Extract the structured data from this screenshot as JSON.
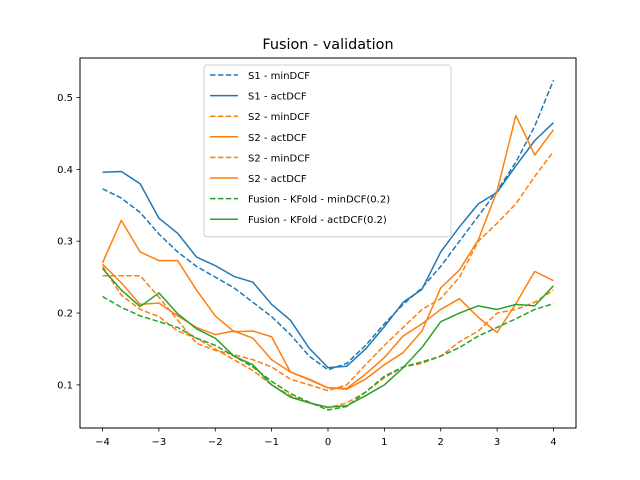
{
  "chart_data": {
    "type": "line",
    "title": "Fusion - validation",
    "xlabel": "",
    "ylabel": "",
    "xlim": [
      -4.4,
      4.4
    ],
    "ylim": [
      0.04,
      0.555
    ],
    "xticks": [
      -4,
      -3,
      -2,
      -1,
      0,
      1,
      2,
      3,
      4
    ],
    "xtick_labels": [
      "−4",
      "−3",
      "−2",
      "−1",
      "0",
      "1",
      "2",
      "3",
      "4"
    ],
    "yticks": [
      0.1,
      0.2,
      0.3,
      0.4,
      0.5
    ],
    "ytick_labels": [
      "0.1",
      "0.2",
      "0.3",
      "0.4",
      "0.5"
    ],
    "grid": false,
    "legend_position": "upper center",
    "x": [
      -4.0,
      -3.667,
      -3.333,
      -3.0,
      -2.667,
      -2.333,
      -2.0,
      -1.667,
      -1.333,
      -1.0,
      -0.667,
      -0.333,
      0.0,
      0.333,
      0.667,
      1.0,
      1.333,
      1.667,
      2.0,
      2.333,
      2.667,
      3.0,
      3.333,
      3.667,
      4.0
    ],
    "series": [
      {
        "name": "S1 - minDCF",
        "color": "#1f77b4",
        "dash": "dashed",
        "values": [
          0.373,
          0.36,
          0.34,
          0.31,
          0.285,
          0.265,
          0.25,
          0.235,
          0.215,
          0.195,
          0.17,
          0.14,
          0.121,
          0.13,
          0.155,
          0.185,
          0.212,
          0.235,
          0.265,
          0.3,
          0.335,
          0.37,
          0.41,
          0.46,
          0.524
        ]
      },
      {
        "name": "S1 - actDCF",
        "color": "#1f77b4",
        "dash": "solid",
        "values": [
          0.396,
          0.397,
          0.38,
          0.332,
          0.311,
          0.278,
          0.266,
          0.251,
          0.243,
          0.212,
          0.19,
          0.151,
          0.124,
          0.126,
          0.15,
          0.181,
          0.215,
          0.233,
          0.285,
          0.32,
          0.352,
          0.368,
          0.405,
          0.44,
          0.465
        ]
      },
      {
        "name": "S2 - minDCF",
        "color": "#ff7f0e",
        "dash": "dashed",
        "values": [
          0.252,
          0.252,
          0.252,
          0.222,
          0.19,
          0.158,
          0.148,
          0.142,
          0.135,
          0.125,
          0.108,
          0.1,
          0.092,
          0.1,
          0.128,
          0.155,
          0.18,
          0.205,
          0.22,
          0.25,
          0.3,
          0.325,
          0.352,
          0.39,
          0.425
        ]
      },
      {
        "name": "S2 - actDCF",
        "color": "#ff7f0e",
        "dash": "solid",
        "values": [
          0.27,
          0.329,
          0.285,
          0.273,
          0.273,
          0.232,
          0.196,
          0.174,
          0.175,
          0.167,
          0.118,
          0.107,
          0.096,
          0.094,
          0.108,
          0.128,
          0.145,
          0.175,
          0.235,
          0.26,
          0.302,
          0.37,
          0.475,
          0.42,
          0.455
        ]
      },
      {
        "name": "S2 - minDCF",
        "color": "#ff7f0e",
        "dash": "dashed",
        "values": [
          0.265,
          0.225,
          0.205,
          0.195,
          0.175,
          0.165,
          0.15,
          0.135,
          0.12,
          0.1,
          0.085,
          0.075,
          0.068,
          0.075,
          0.09,
          0.11,
          0.125,
          0.13,
          0.14,
          0.16,
          0.175,
          0.2,
          0.205,
          0.215,
          0.232
        ]
      },
      {
        "name": "S2 - actDCF",
        "color": "#ff7f0e",
        "dash": "solid",
        "values": [
          0.268,
          0.242,
          0.212,
          0.214,
          0.196,
          0.18,
          0.17,
          0.175,
          0.165,
          0.135,
          0.118,
          0.108,
          0.096,
          0.095,
          0.115,
          0.138,
          0.168,
          0.185,
          0.205,
          0.22,
          0.194,
          0.173,
          0.213,
          0.258,
          0.245
        ]
      },
      {
        "name": "Fusion - KFold - minDCF(0.2)",
        "color": "#2ca02c",
        "dash": "dashed",
        "values": [
          0.223,
          0.208,
          0.196,
          0.188,
          0.18,
          0.165,
          0.155,
          0.14,
          0.125,
          0.105,
          0.088,
          0.076,
          0.065,
          0.07,
          0.09,
          0.112,
          0.125,
          0.132,
          0.14,
          0.152,
          0.168,
          0.18,
          0.192,
          0.205,
          0.213
        ]
      },
      {
        "name": "Fusion - KFold - actDCF(0.2)",
        "color": "#2ca02c",
        "dash": "solid",
        "values": [
          0.262,
          0.232,
          0.209,
          0.228,
          0.199,
          0.178,
          0.165,
          0.14,
          0.128,
          0.1,
          0.083,
          0.075,
          0.069,
          0.071,
          0.085,
          0.1,
          0.124,
          0.152,
          0.188,
          0.2,
          0.21,
          0.205,
          0.212,
          0.21,
          0.238
        ]
      }
    ]
  }
}
